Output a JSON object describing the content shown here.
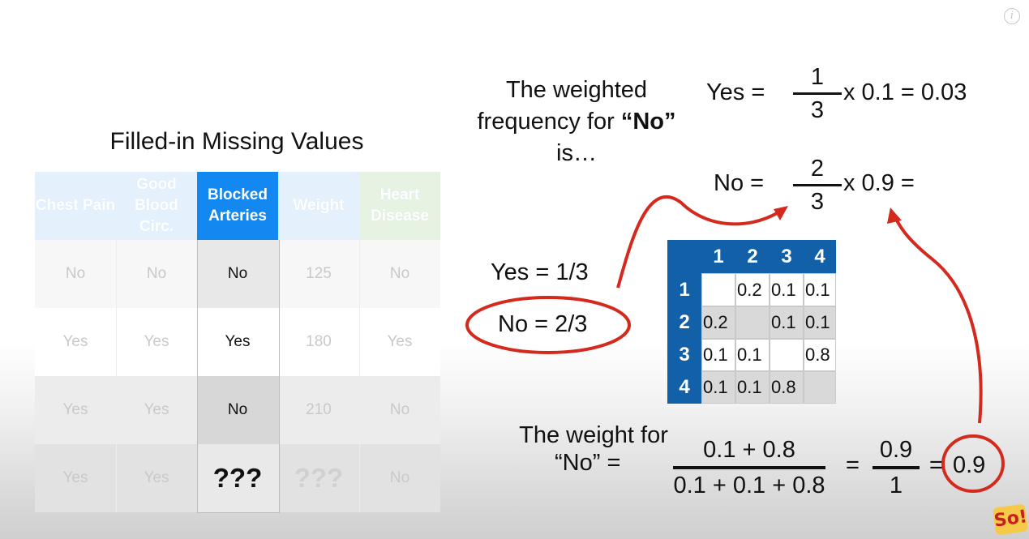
{
  "table": {
    "title": "Filled-in Missing Values",
    "headers": [
      "Chest Pain",
      "Good Blood Circ.",
      "Blocked Arteries",
      "Weight",
      "Heart Disease"
    ],
    "rows": [
      [
        "No",
        "No",
        "No",
        "125",
        "No"
      ],
      [
        "Yes",
        "Yes",
        "Yes",
        "180",
        "Yes"
      ],
      [
        "Yes",
        "Yes",
        "No",
        "210",
        "No"
      ],
      [
        "Yes",
        "Yes",
        "???",
        "???",
        "No"
      ]
    ]
  },
  "explanation": {
    "phrase_line1": "The weighted",
    "phrase_line2": "frequency for ",
    "phrase_bold": "“No”",
    "phrase_line3": "is…",
    "yes_eq_label": "Yes =",
    "yes_num": "1",
    "yes_den": "3",
    "yes_tail": "x 0.1 = 0.03",
    "no_eq_label": "No =",
    "no_num": "2",
    "no_den": "3",
    "no_tail": "x 0.9 ="
  },
  "freqs": {
    "yes": "Yes = 1/3",
    "no": "No = 2/3"
  },
  "matrix": {
    "header": [
      "1",
      "2",
      "3",
      "4"
    ],
    "rows": [
      [
        "1",
        "",
        "0.2",
        "0.1",
        "0.1"
      ],
      [
        "2",
        "0.2",
        "",
        "0.1",
        "0.1"
      ],
      [
        "3",
        "0.1",
        "0.1",
        "",
        "0.8"
      ],
      [
        "4",
        "0.1",
        "0.1",
        "0.8",
        ""
      ]
    ]
  },
  "weight": {
    "label_line1": "The weight for",
    "label_line2": "“No” =",
    "num": "0.1 + 0.8",
    "den": "0.1 + 0.1 + 0.8",
    "eq1": "=",
    "frac2_num": "0.9",
    "frac2_den": "1",
    "eq2": "=",
    "result": "0.9"
  },
  "colors": {
    "highlight_blue": "#1288f0",
    "matrix_blue": "#1160a8",
    "annotation_red": "#d42a1e"
  },
  "icons": {
    "info": "i",
    "logo": "So!"
  }
}
